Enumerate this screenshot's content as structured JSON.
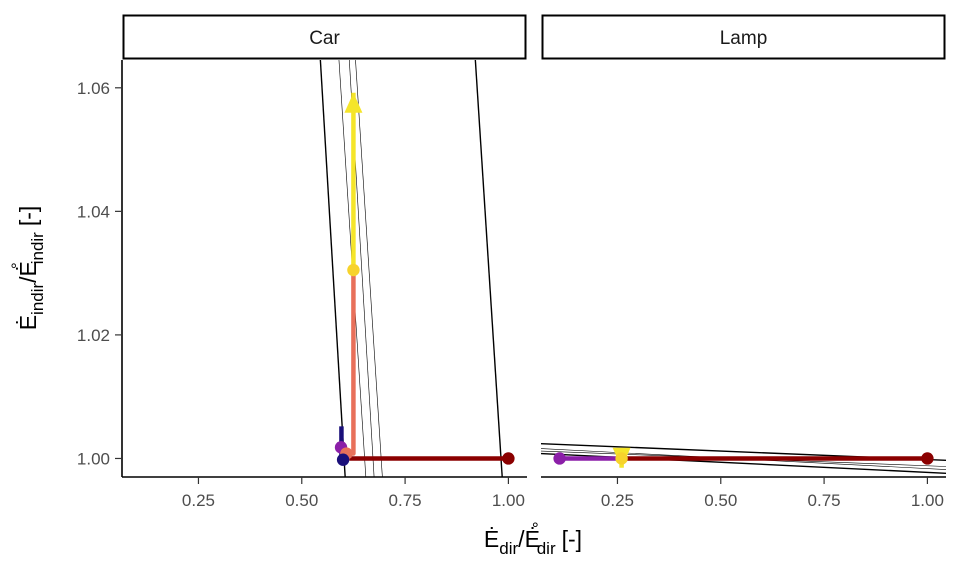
{
  "chart_data": {
    "type": "line",
    "facets": [
      "Car",
      "Lamp"
    ],
    "xlabel": {
      "main": "Ė",
      "sub": "dir",
      "sep": "/",
      "main2": "Ė",
      "sup2": "°",
      "sub2": "dir",
      "unit": "[-]"
    },
    "ylabel": {
      "main": "Ė",
      "sub": "indir",
      "sep": "/",
      "main2": "Ė",
      "sup2": "°",
      "sub2": "indir",
      "unit": "[-]"
    },
    "xlim": [
      0.065,
      1.045
    ],
    "ylim": [
      0.997,
      1.0645
    ],
    "x_ticks": [
      0.25,
      0.5,
      0.75,
      1.0
    ],
    "x_tick_labels": [
      "0.25",
      "0.50",
      "0.75",
      "1.00"
    ],
    "y_ticks": [
      1.0,
      1.02,
      1.04,
      1.06
    ],
    "y_tick_labels": [
      "1.00",
      "1.02",
      "1.04",
      "1.06"
    ],
    "colors": {
      "dark_red": "#8b0000",
      "salmon": "#e8705a",
      "yellow": "#f5e52a",
      "gold_point": "#f7d32c",
      "purple": "#8b1fa8",
      "dark_blue": "#1a0f7a",
      "guide": "#000000"
    },
    "panels": [
      {
        "name": "Car",
        "guides": [
          {
            "x": [
              0.545,
              0.605
            ],
            "y": [
              1.0645,
              0.997
            ],
            "width": 1.4
          },
          {
            "x": [
              0.92,
              0.985
            ],
            "y": [
              1.0645,
              0.997
            ],
            "width": 1.4
          },
          {
            "x": [
              0.59,
              0.655
            ],
            "y": [
              1.0645,
              0.997
            ],
            "width": 0.6
          },
          {
            "x": [
              0.615,
              0.675
            ],
            "y": [
              1.0645,
              0.997
            ],
            "width": 0.6
          },
          {
            "x": [
              0.63,
              0.695
            ],
            "y": [
              1.0645,
              0.997
            ],
            "width": 0.6
          }
        ],
        "paths": [
          {
            "color": "#8b0000",
            "points": [
              [
                1.0,
                1.0
              ],
              [
                0.615,
                1.0
              ]
            ]
          },
          {
            "color": "#e8705a",
            "points": [
              [
                0.615,
                1.0
              ],
              [
                0.612,
                1.0008
              ],
              [
                0.625,
                1.0008
              ],
              [
                0.625,
                1.0305
              ]
            ]
          },
          {
            "color": "#f5e52a",
            "points": [
              [
                0.625,
                1.0305
              ],
              [
                0.625,
                1.0592
              ]
            ],
            "arrow": true
          },
          {
            "color": "#8b1fa8",
            "points": [
              [
                0.595,
                1.0018
              ],
              [
                0.605,
                1.0
              ]
            ]
          },
          {
            "color": "#1a0f7a",
            "points": [
              [
                0.596,
                1.0052
              ],
              [
                0.596,
                0.9995
              ]
            ]
          }
        ],
        "points": [
          {
            "x": 1.0,
            "y": 1.0,
            "color": "#8b0000"
          },
          {
            "x": 0.625,
            "y": 1.0305,
            "color": "#f7d32c"
          },
          {
            "x": 0.595,
            "y": 1.0018,
            "color": "#8b1fa8"
          },
          {
            "x": 0.608,
            "y": 1.0008,
            "color": "#e8705a"
          },
          {
            "x": 0.6,
            "y": 0.9998,
            "color": "#1a0f7a"
          }
        ]
      },
      {
        "name": "Lamp",
        "guides": [
          {
            "x": [
              0.065,
              1.045
            ],
            "y": [
              1.0024,
              0.9997
            ],
            "width": 1.4
          },
          {
            "x": [
              0.065,
              1.045
            ],
            "y": [
              1.0016,
              0.9982
            ],
            "width": 0.6
          },
          {
            "x": [
              0.065,
              1.045
            ],
            "y": [
              1.0012,
              0.9987
            ],
            "width": 0.6
          },
          {
            "x": [
              0.065,
              1.045
            ],
            "y": [
              1.0008,
              0.9976
            ],
            "width": 1.4
          }
        ],
        "paths": [
          {
            "color": "#8b1fa8",
            "points": [
              [
                0.11,
                1.0
              ],
              [
                0.26,
                1.0
              ]
            ]
          },
          {
            "color": "#8b0000",
            "points": [
              [
                0.26,
                1.0
              ],
              [
                1.0,
                1.0
              ]
            ]
          },
          {
            "color": "#f5e52a",
            "points": [
              [
                0.26,
                1.0
              ],
              [
                0.26,
                0.9985
              ]
            ],
            "arrow": true
          }
        ],
        "points": [
          {
            "x": 0.11,
            "y": 1.0,
            "color": "#8b1fa8"
          },
          {
            "x": 0.26,
            "y": 1.0,
            "color": "#f7d32c"
          },
          {
            "x": 1.0,
            "y": 1.0,
            "color": "#8b0000"
          }
        ]
      }
    ]
  }
}
